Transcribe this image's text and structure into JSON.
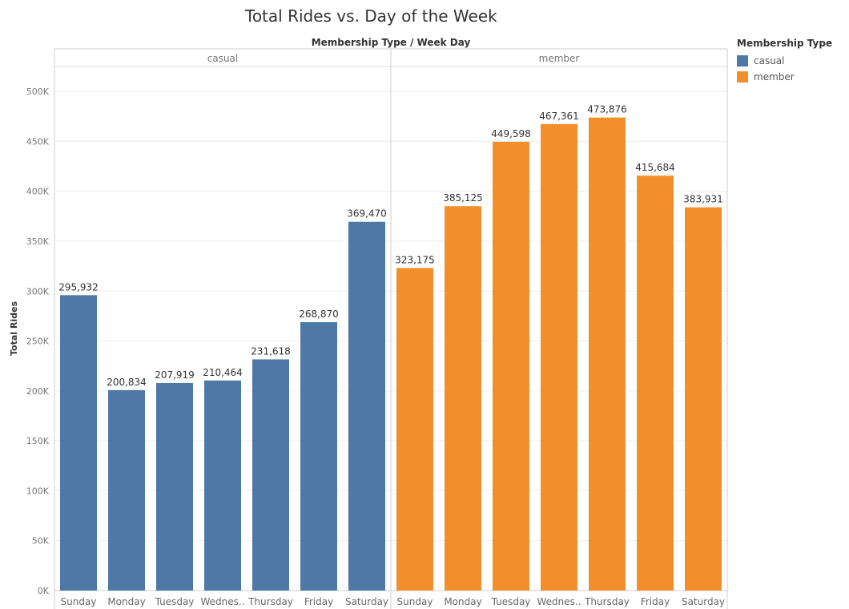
{
  "chart_data": {
    "type": "bar",
    "title": "Total Rides vs. Day of the Week",
    "header_label": "Membership Type  /  Week Day",
    "ylabel": "Total Rides",
    "ylim": [
      0,
      525000
    ],
    "yticks": [
      0,
      50000,
      100000,
      150000,
      200000,
      250000,
      300000,
      350000,
      400000,
      450000,
      500000
    ],
    "ytick_labels": [
      "0K",
      "50K",
      "100K",
      "150K",
      "200K",
      "250K",
      "300K",
      "350K",
      "400K",
      "450K",
      "500K"
    ],
    "grid": true,
    "legend": {
      "title": "Membership Type",
      "position": "right",
      "items": [
        {
          "label": "casual",
          "color": "#4e79a7"
        },
        {
          "label": "member",
          "color": "#f28e2b"
        }
      ]
    },
    "categories": [
      "Sunday",
      "Monday",
      "Tuesday",
      "Wednes..",
      "Thursday",
      "Friday",
      "Saturday"
    ],
    "panels": [
      {
        "name": "casual",
        "color": "#4e79a7",
        "values": [
          295932,
          200834,
          207919,
          210464,
          231618,
          268870,
          369470
        ],
        "labels": [
          "295,932",
          "200,834",
          "207,919",
          "210,464",
          "231,618",
          "268,870",
          "369,470"
        ]
      },
      {
        "name": "member",
        "color": "#f28e2b",
        "values": [
          323175,
          385125,
          449598,
          467361,
          473876,
          415684,
          383931
        ],
        "labels": [
          "323,175",
          "385,125",
          "449,598",
          "467,361",
          "473,876",
          "415,684",
          "383,931"
        ]
      }
    ]
  }
}
